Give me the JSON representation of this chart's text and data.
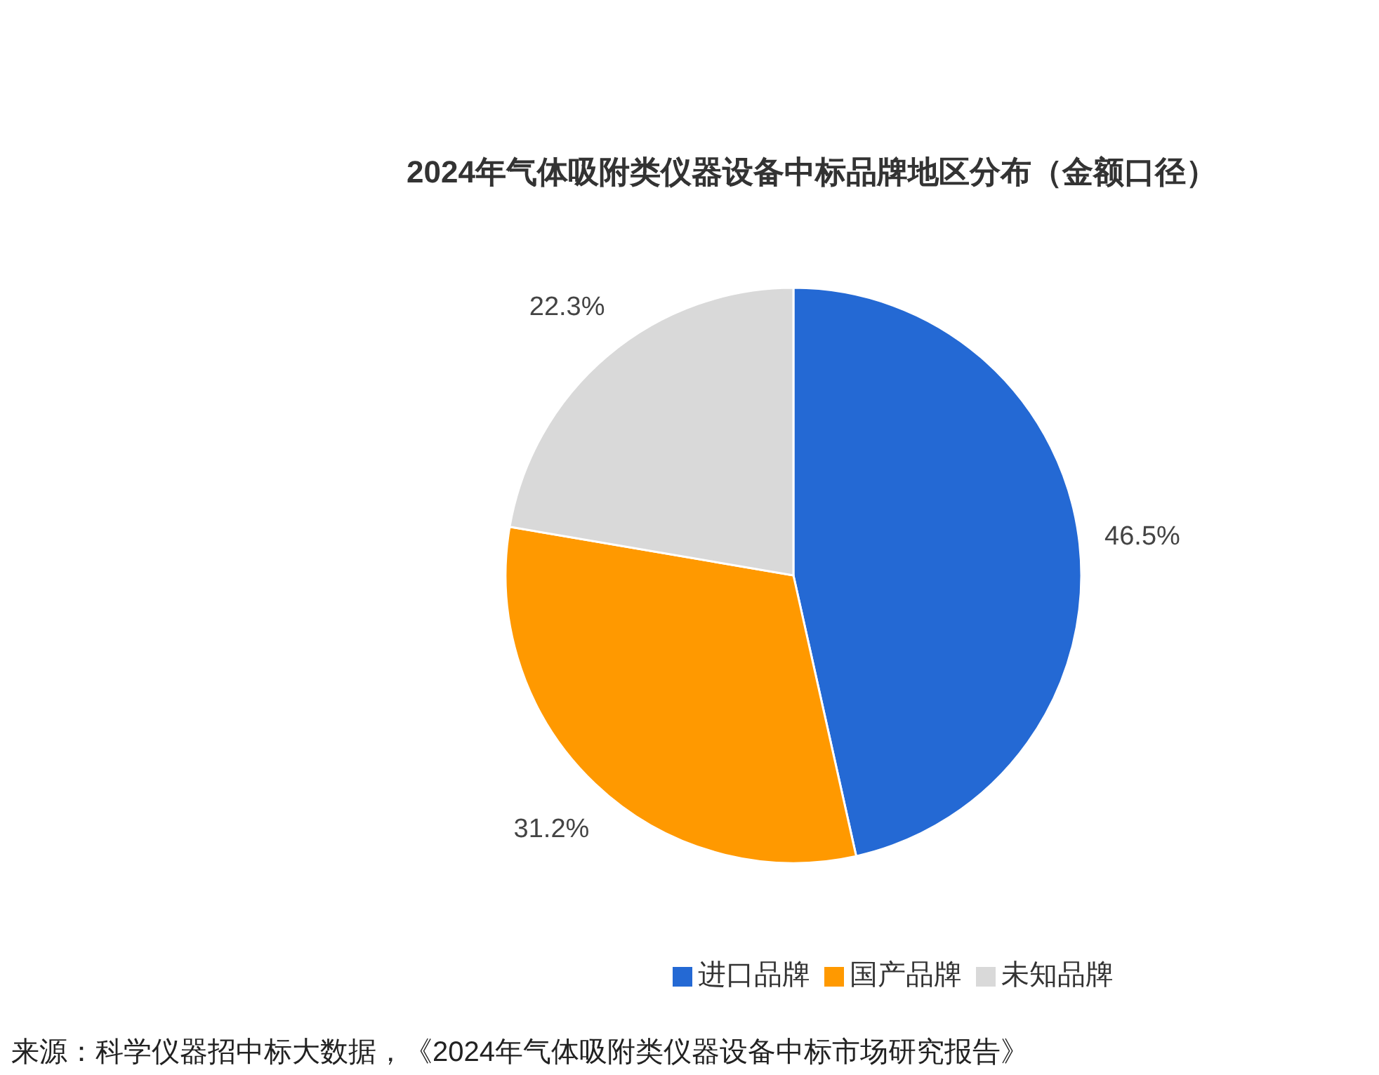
{
  "chart_data": {
    "type": "pie",
    "title": "2024年气体吸附类仪器设备中标品牌地区分布（金额口径）",
    "categories": [
      "进口品牌",
      "国产品牌",
      "未知品牌"
    ],
    "values": [
      46.5,
      31.2,
      22.3
    ],
    "value_labels": [
      "46.5%",
      "31.2%",
      "22.3%"
    ],
    "colors": [
      "#2469d4",
      "#ff9900",
      "#d9d9d9"
    ],
    "legend": "bottom",
    "annotations": [
      "来源：科学仪器招中标大数据，《2024年气体吸附类仪器设备中标市场研究报告》"
    ]
  }
}
